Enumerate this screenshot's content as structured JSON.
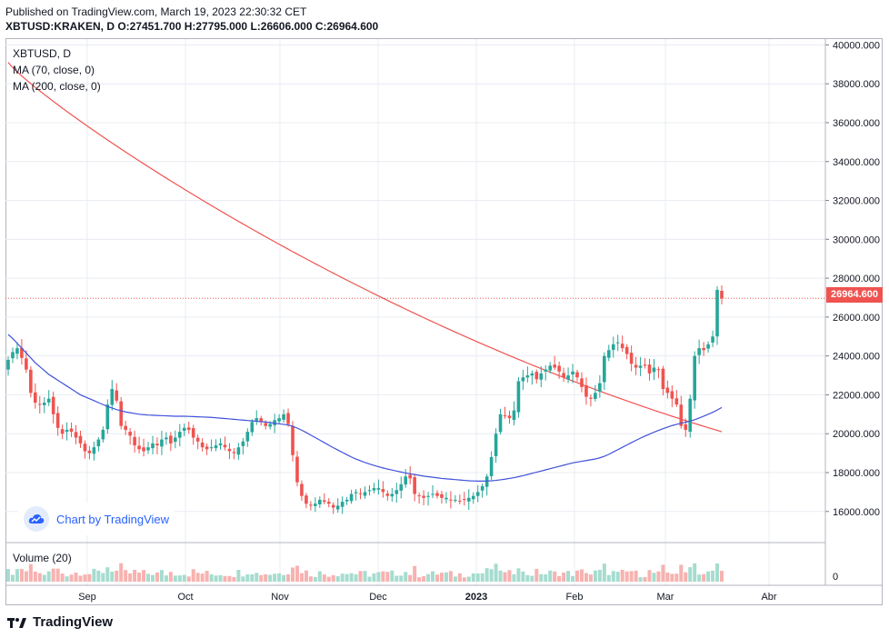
{
  "header": {
    "published": "Published on TradingView.com, March 19, 2023 22:30:32 CET",
    "ohlc": "XBTUSD:KRAKEN, D O:27451.700 H:27795.000 L:26606.000 C:26964.600"
  },
  "legend": {
    "symbol": "XBTUSD, D",
    "ma70": "MA (70, close, 0)",
    "ma200": "MA (200, close, 0)",
    "volume": "Volume (20)"
  },
  "watermark": {
    "text": "Chart by TradingView"
  },
  "footer": {
    "brand": "TradingView"
  },
  "colors": {
    "up": "#26a69a",
    "down": "#ef5350",
    "ma70": "#3f51d9",
    "ma200": "#ef5350",
    "grid": "#e9ecf2",
    "axis_text": "#131722",
    "price_line": "#ef5350"
  },
  "chart_data": {
    "type": "candlestick",
    "title": "XBTUSD, D",
    "x_labels": [
      "Sep",
      "Oct",
      "Nov",
      "Dec",
      "2023",
      "Feb",
      "Mar",
      "Abr"
    ],
    "y_ticks": [
      16000,
      18000,
      20000,
      22000,
      24000,
      26000,
      28000,
      30000,
      32000,
      34000,
      36000,
      38000,
      40000
    ],
    "y_tick_labels": [
      "16000.000",
      "18000.000",
      "20000.000",
      "22000.000",
      "24000.000",
      "26000.000",
      "28000.000",
      "30000.000",
      "32000.000",
      "34000.000",
      "36000.000",
      "38000.000",
      "40000.000"
    ],
    "ylim": [
      14400,
      40300
    ],
    "last_price": 26964.6,
    "last_price_label": "26964.600",
    "volume_axis_label": "0",
    "close": [
      23800,
      24200,
      24400,
      23900,
      23300,
      22100,
      21600,
      21500,
      21600,
      21800,
      21000,
      20300,
      20000,
      20200,
      20100,
      19800,
      19500,
      19100,
      19000,
      19300,
      19700,
      20200,
      21500,
      22300,
      21700,
      20400,
      20200,
      19900,
      19400,
      19200,
      19100,
      19300,
      19500,
      19400,
      19700,
      19800,
      19500,
      19800,
      20100,
      20300,
      20200,
      19800,
      19600,
      19300,
      19200,
      19300,
      19400,
      19500,
      19300,
      19100,
      19000,
      19300,
      19600,
      20100,
      20600,
      20800,
      20600,
      20400,
      20500,
      20700,
      20800,
      21000,
      20500,
      18900,
      17500,
      16800,
      16400,
      16300,
      16400,
      16600,
      16500,
      16400,
      16200,
      16300,
      16500,
      16600,
      16900,
      17000,
      16900,
      17000,
      17100,
      17200,
      17200,
      17000,
      16800,
      16900,
      17100,
      17400,
      17800,
      17700,
      16900,
      16800,
      16700,
      16800,
      16900,
      16800,
      16700,
      16700,
      16600,
      16600,
      16550,
      16600,
      16700,
      16800,
      17000,
      17300,
      17800,
      18800,
      20000,
      21000,
      20900,
      20800,
      21200,
      22700,
      22900,
      23000,
      23100,
      22800,
      23100,
      23300,
      23500,
      23400,
      23200,
      22900,
      23000,
      23200,
      22900,
      22400,
      21900,
      21800,
      22100,
      22600,
      24000,
      24300,
      24600,
      24700,
      24400,
      24100,
      23600,
      23400,
      23500,
      23500,
      23100,
      23400,
      23300,
      22300,
      22100,
      21800,
      21500,
      20400,
      20200,
      21800,
      24000,
      24400,
      24300,
      24600,
      25000,
      27400,
      26964.6
    ],
    "ma70": [
      25100,
      24900,
      24650,
      24400,
      24150,
      23900,
      23650,
      23450,
      23250,
      23050,
      22900,
      22750,
      22600,
      22450,
      22300,
      22150,
      22000,
      21900,
      21800,
      21700,
      21600,
      21500,
      21400,
      21320,
      21240,
      21180,
      21120,
      21080,
      21040,
      21000,
      20980,
      20960,
      20950,
      20940,
      20930,
      20920,
      20910,
      20900,
      20900,
      20900,
      20890,
      20880,
      20870,
      20860,
      20850,
      20840,
      20820,
      20800,
      20780,
      20760,
      20740,
      20720,
      20700,
      20680,
      20660,
      20640,
      20620,
      20600,
      20570,
      20540,
      20510,
      20480,
      20450,
      20380,
      20290,
      20180,
      20060,
      19930,
      19800,
      19670,
      19540,
      19410,
      19280,
      19160,
      19040,
      18920,
      18800,
      18700,
      18610,
      18520,
      18440,
      18370,
      18300,
      18240,
      18180,
      18130,
      18080,
      18030,
      17980,
      17940,
      17900,
      17860,
      17820,
      17790,
      17760,
      17730,
      17700,
      17680,
      17660,
      17640,
      17620,
      17600,
      17580,
      17570,
      17560,
      17560,
      17570,
      17580,
      17600,
      17630,
      17660,
      17700,
      17740,
      17790,
      17840,
      17900,
      17960,
      18020,
      18080,
      18140,
      18200,
      18260,
      18320,
      18380,
      18440,
      18500,
      18540,
      18580,
      18620,
      18660,
      18700,
      18760,
      18840,
      18940,
      19060,
      19180,
      19300,
      19420,
      19540,
      19660,
      19770,
      19880,
      19980,
      20080,
      20170,
      20260,
      20340,
      20420,
      20480,
      20540,
      20590,
      20650,
      20720,
      20810,
      20900,
      21000,
      21100,
      21220,
      21350
    ]
  }
}
